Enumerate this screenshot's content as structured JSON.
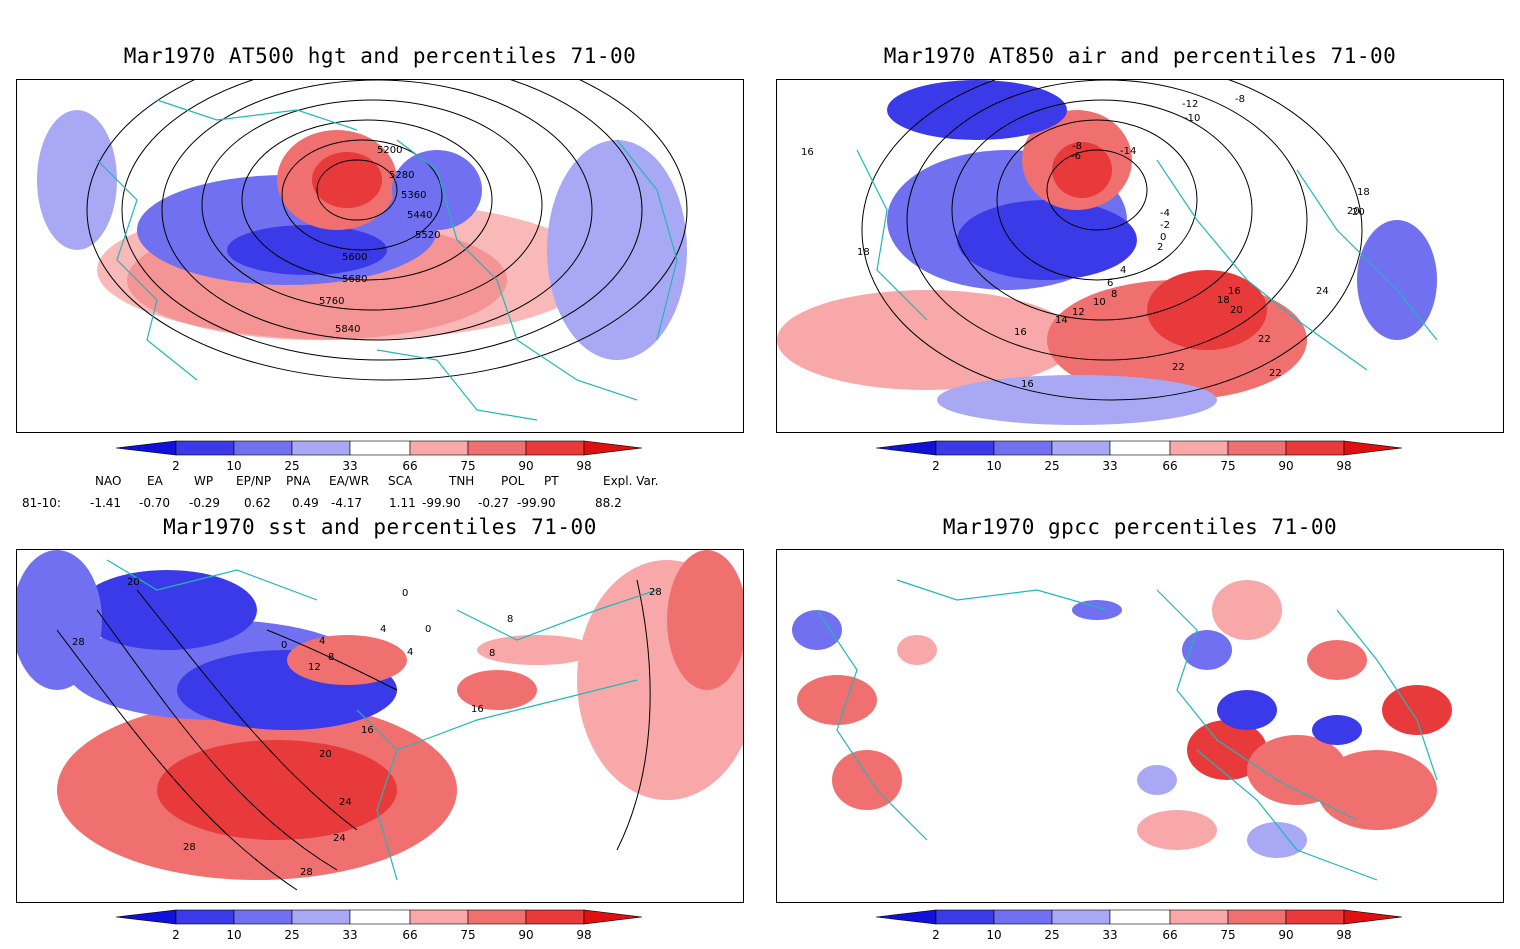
{
  "panels": [
    {
      "id": "hgt",
      "title": "Mar1970 AT500 hgt and percentiles 71-00",
      "contour_labels": [
        "5200",
        "5280",
        "5360",
        "5440",
        "5520",
        "5600",
        "5680",
        "5760",
        "5840"
      ]
    },
    {
      "id": "air",
      "title": "Mar1970 AT850 air and percentiles 71-00",
      "contour_labels": [
        "-12",
        "-10",
        "-8",
        "-6",
        "-8",
        "-14",
        "-4",
        "-2",
        "0",
        "2",
        "4",
        "6",
        "8",
        "10",
        "12",
        "14",
        "16",
        "18",
        "20",
        "22",
        "24",
        "16",
        "18",
        "20",
        "22",
        "18",
        "20",
        "22",
        "16",
        "16"
      ]
    },
    {
      "id": "sst",
      "title": "Mar1970 sst and percentiles 71-00",
      "contour_labels": [
        "20",
        "28",
        "0",
        "4",
        "8",
        "12",
        "16",
        "20",
        "24",
        "28",
        "28",
        "0",
        "4",
        "8",
        "16",
        "24",
        "28",
        "8",
        "4",
        "0"
      ]
    },
    {
      "id": "gpcc",
      "title": "Mar1970 gpcc percentiles 71-00",
      "contour_labels": []
    }
  ],
  "colorbar": {
    "labels": [
      "2",
      "10",
      "25",
      "33",
      "66",
      "75",
      "90",
      "98"
    ],
    "colors": [
      "#1010d8",
      "#3a3ae8",
      "#7070f0",
      "#a8a8f4",
      "#ffffff",
      "#f8a8a8",
      "#f07070",
      "#e83a3a",
      "#e01010"
    ]
  },
  "indices": {
    "headers": [
      "NAO",
      "EA",
      "WP",
      "EP/NP",
      "PNA",
      "EA/WR",
      "SCA",
      "TNH",
      "POL",
      "PT",
      "Expl. Var."
    ],
    "row_label": "81-10:",
    "values": [
      "-1.41",
      "-0.70",
      "-0.29",
      "0.62",
      "0.49",
      "-4.17",
      "1.11",
      "-99.90",
      "-0.27",
      "-99.90",
      "88.2"
    ]
  },
  "colors": {
    "coast": "#20b8b8",
    "contour": "#000000",
    "frame": "#000000"
  }
}
